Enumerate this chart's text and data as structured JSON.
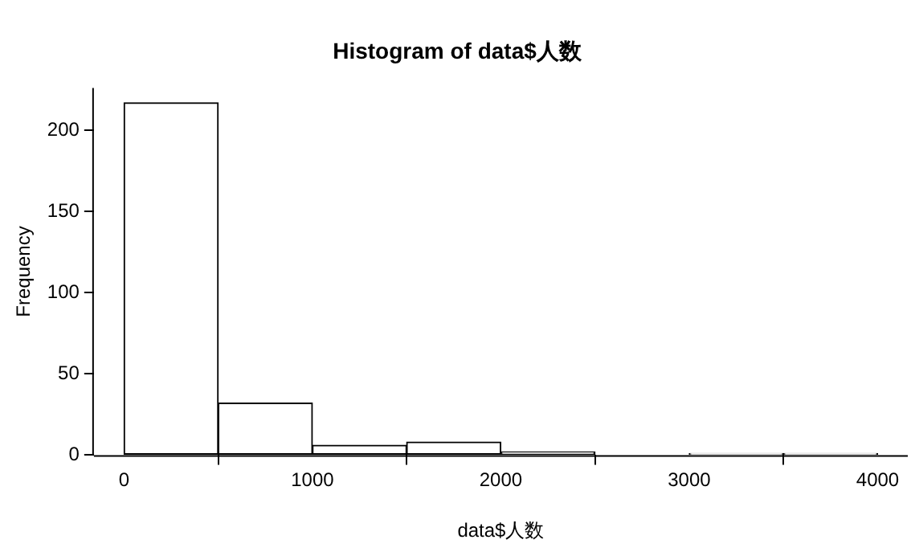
{
  "chart_data": {
    "type": "histogram",
    "title": "Histogram of data$人数",
    "xlabel": "data$人数",
    "ylabel": "Frequency",
    "bins": [
      0,
      500,
      1000,
      1500,
      2000,
      2500,
      3000,
      3500,
      4000
    ],
    "values": [
      217,
      32,
      6,
      8,
      2,
      0,
      1,
      1
    ],
    "color": "#ffffff",
    "xlim": [
      -160,
      4160
    ],
    "ylim": [
      0,
      226
    ],
    "xticks": [
      0,
      1000,
      2000,
      3000,
      4000
    ],
    "yticks": [
      0,
      50,
      100,
      150,
      200
    ],
    "grid": false,
    "legend": false
  }
}
